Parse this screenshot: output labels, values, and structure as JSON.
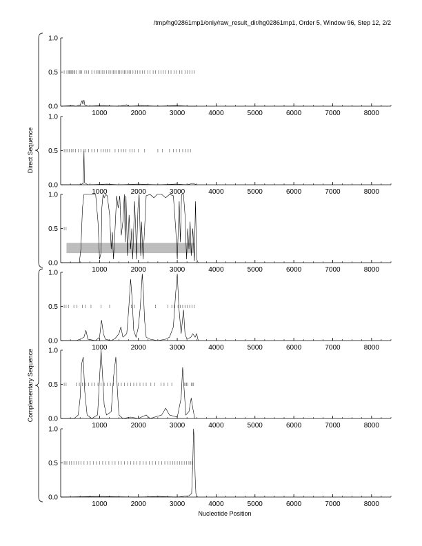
{
  "chart_data": {
    "type": "line",
    "title": "/tmp/hg02861mp1/only/raw_result_dir/hg02861mp1, Order 5, Window 96, Step 12, 2/2",
    "xlabel": "Nucleotide Position",
    "x_ticks": [
      1000,
      2000,
      3000,
      4000,
      5000,
      6000,
      7000,
      8000
    ],
    "xlim": [
      0,
      8500
    ],
    "y_ticks": [
      "0.0",
      "0.5",
      "1.0"
    ],
    "ylim": [
      0,
      1
    ],
    "group_labels": [
      "Direct Sequence",
      "Complementary Sequence"
    ],
    "panels": [
      {
        "id": "direct-frame-1",
        "orf_ticks": [
          90,
          160,
          210,
          230,
          250,
          280,
          310,
          340,
          360,
          400,
          480,
          510,
          540,
          620,
          670,
          720,
          800,
          860,
          920,
          960,
          1000,
          1040,
          1080,
          1120,
          1180,
          1240,
          1280,
          1320,
          1360,
          1400,
          1440,
          1480,
          1520,
          1560,
          1600,
          1640,
          1680,
          1720,
          1760,
          1800,
          1860,
          1920,
          1980,
          2040,
          2100,
          2160,
          2240,
          2300,
          2380,
          2440,
          2520,
          2580,
          2640,
          2700,
          2780,
          2840,
          2920,
          2980,
          3060,
          3120,
          3200,
          3260,
          3320,
          3380,
          3440
        ],
        "series": [
          [
            0,
            0
          ],
          [
            300,
            0.01
          ],
          [
            400,
            0
          ],
          [
            500,
            0.02
          ],
          [
            550,
            0.08
          ],
          [
            570,
            0.03
          ],
          [
            600,
            0.09
          ],
          [
            620,
            0.02
          ],
          [
            700,
            0
          ],
          [
            1000,
            0.01
          ],
          [
            1500,
            0
          ],
          [
            1700,
            0.02
          ],
          [
            1750,
            0
          ],
          [
            2100,
            0.01
          ],
          [
            2500,
            0
          ],
          [
            3000,
            0.01
          ],
          [
            3300,
            0
          ],
          [
            3500,
            0
          ]
        ]
      },
      {
        "id": "direct-frame-2",
        "orf_ticks": [
          90,
          140,
          180,
          220,
          280,
          320,
          380,
          450,
          520,
          600,
          650,
          720,
          800,
          880,
          950,
          1040,
          1100,
          1160,
          1200,
          1260,
          1400,
          1480,
          1560,
          1620,
          1680,
          1780,
          1840,
          1900,
          2000,
          2160,
          2500,
          2620,
          2800,
          2900,
          2980,
          3060,
          3140,
          3220,
          3280,
          3340
        ],
        "series": [
          [
            0,
            0
          ],
          [
            500,
            0
          ],
          [
            580,
            0.02
          ],
          [
            600,
            0.5
          ],
          [
            612,
            0.03
          ],
          [
            700,
            0
          ],
          [
            1200,
            0.01
          ],
          [
            1500,
            0
          ],
          [
            2000,
            0.01
          ],
          [
            2500,
            0
          ],
          [
            3000,
            0.01
          ],
          [
            3250,
            0
          ],
          [
            3400,
            0.02
          ],
          [
            3500,
            0
          ]
        ]
      },
      {
        "id": "direct-frame-3",
        "orf_ticks": [
          90,
          140
        ],
        "gene_band": [
          150,
          3450
        ],
        "series": [
          [
            0,
            0
          ],
          [
            480,
            0
          ],
          [
            520,
            0.2
          ],
          [
            560,
            0.8
          ],
          [
            600,
            1.0
          ],
          [
            900,
            1.0
          ],
          [
            960,
            0.6
          ],
          [
            1000,
            0.05
          ],
          [
            1040,
            0.15
          ],
          [
            1060,
            0.8
          ],
          [
            1090,
            1.0
          ],
          [
            1120,
            0.95
          ],
          [
            1160,
            1.0
          ],
          [
            1200,
            0.98
          ],
          [
            1260,
            0.7
          ],
          [
            1300,
            0.2
          ],
          [
            1330,
            0.45
          ],
          [
            1360,
            0.05
          ],
          [
            1400,
            0.5
          ],
          [
            1440,
            0.98
          ],
          [
            1480,
            0.8
          ],
          [
            1520,
            0.98
          ],
          [
            1560,
            0.4
          ],
          [
            1600,
            0.6
          ],
          [
            1640,
            1.0
          ],
          [
            1660,
            0.3
          ],
          [
            1680,
            0.98
          ],
          [
            1720,
            0.1
          ],
          [
            1760,
            0.7
          ],
          [
            1800,
            0.2
          ],
          [
            1830,
            0.5
          ],
          [
            1850,
            0.05
          ],
          [
            1870,
            0.3
          ],
          [
            1900,
            0.9
          ],
          [
            1930,
            0.5
          ],
          [
            1950,
            0.05
          ],
          [
            1990,
            0.8
          ],
          [
            2020,
            1.0
          ],
          [
            2060,
            0.1
          ],
          [
            2080,
            0.6
          ],
          [
            2120,
            0.05
          ],
          [
            2150,
            0.4
          ],
          [
            2200,
            0.98
          ],
          [
            2300,
            1.0
          ],
          [
            2400,
            0.95
          ],
          [
            2480,
            1.0
          ],
          [
            2600,
            1.0
          ],
          [
            2700,
            0.95
          ],
          [
            2800,
            1.0
          ],
          [
            2900,
            0.98
          ],
          [
            2960,
            0.5
          ],
          [
            3000,
            0.05
          ],
          [
            3050,
            0.9
          ],
          [
            3080,
            0.3
          ],
          [
            3110,
            1.0
          ],
          [
            3160,
            1.0
          ],
          [
            3200,
            0.7
          ],
          [
            3240,
            0.05
          ],
          [
            3270,
            0.5
          ],
          [
            3300,
            0.2
          ],
          [
            3330,
            0.6
          ],
          [
            3360,
            0.1
          ],
          [
            3400,
            0.5
          ],
          [
            3440,
            0.02
          ],
          [
            3470,
            0.9
          ],
          [
            3500,
            0.05
          ],
          [
            3540,
            0
          ]
        ]
      },
      {
        "id": "complementary-frame-1",
        "orf_ticks": [
          90,
          140,
          200,
          340,
          420,
          560,
          640,
          780,
          1040,
          1260,
          1820,
          1900,
          2440,
          2760,
          2860,
          2920,
          3020,
          3080,
          3140,
          3200,
          3260,
          3320,
          3380,
          3440
        ],
        "series": [
          [
            0,
            0
          ],
          [
            400,
            0
          ],
          [
            500,
            0.02
          ],
          [
            600,
            0.05
          ],
          [
            650,
            0.15
          ],
          [
            700,
            0.02
          ],
          [
            900,
            0
          ],
          [
            1000,
            0.05
          ],
          [
            1050,
            0.3
          ],
          [
            1100,
            0.1
          ],
          [
            1150,
            0.02
          ],
          [
            1300,
            0
          ],
          [
            1400,
            0.03
          ],
          [
            1500,
            0.1
          ],
          [
            1550,
            0.2
          ],
          [
            1600,
            0.05
          ],
          [
            1700,
            0.1
          ],
          [
            1750,
            0.45
          ],
          [
            1800,
            0.9
          ],
          [
            1840,
            0.6
          ],
          [
            1880,
            0.15
          ],
          [
            1940,
            0.05
          ],
          [
            2000,
            0.2
          ],
          [
            2050,
            0.5
          ],
          [
            2100,
            0.98
          ],
          [
            2130,
            0.7
          ],
          [
            2160,
            0.3
          ],
          [
            2200,
            0.05
          ],
          [
            2300,
            0.02
          ],
          [
            2500,
            0
          ],
          [
            2700,
            0.02
          ],
          [
            2800,
            0.05
          ],
          [
            2900,
            0.2
          ],
          [
            2960,
            0.7
          ],
          [
            3000,
            0.98
          ],
          [
            3040,
            0.5
          ],
          [
            3100,
            0.1
          ],
          [
            3160,
            0.45
          ],
          [
            3200,
            0.1
          ],
          [
            3250,
            0.02
          ],
          [
            3350,
            0.05
          ],
          [
            3400,
            0.1
          ],
          [
            3460,
            0.05
          ],
          [
            3500,
            0.1
          ],
          [
            3540,
            0
          ]
        ]
      },
      {
        "id": "complementary-frame-2",
        "orf_ticks": [
          90,
          140,
          400,
          480,
          560,
          640,
          720,
          800,
          880,
          960,
          1040,
          1120,
          1200,
          1280,
          1360,
          1480,
          1560,
          1640,
          1720,
          1800,
          1880,
          1960,
          2040,
          2120,
          2200,
          2320,
          2420,
          2580,
          2660,
          2760,
          2860,
          3180,
          3210,
          3240,
          3270,
          3360,
          3390,
          3420
        ],
        "series": [
          [
            0,
            0
          ],
          [
            350,
            0
          ],
          [
            450,
            0.05
          ],
          [
            500,
            0.3
          ],
          [
            540,
            0.8
          ],
          [
            580,
            0.9
          ],
          [
            620,
            0.4
          ],
          [
            680,
            0.05
          ],
          [
            800,
            0
          ],
          [
            950,
            0.05
          ],
          [
            1000,
            0.6
          ],
          [
            1040,
            1.0
          ],
          [
            1080,
            0.6
          ],
          [
            1120,
            0.2
          ],
          [
            1180,
            0.05
          ],
          [
            1300,
            0.1
          ],
          [
            1360,
            0.6
          ],
          [
            1420,
            0.9
          ],
          [
            1460,
            0.4
          ],
          [
            1500,
            0.05
          ],
          [
            1600,
            0
          ],
          [
            1800,
            0.02
          ],
          [
            2000,
            0
          ],
          [
            2200,
            0.05
          ],
          [
            2300,
            0
          ],
          [
            2600,
            0.05
          ],
          [
            2700,
            0.15
          ],
          [
            2800,
            0.05
          ],
          [
            3000,
            0.02
          ],
          [
            3100,
            0.3
          ],
          [
            3140,
            0.75
          ],
          [
            3180,
            0.4
          ],
          [
            3220,
            0.05
          ],
          [
            3300,
            0.1
          ],
          [
            3360,
            0.3
          ],
          [
            3400,
            0.15
          ],
          [
            3450,
            0
          ]
        ]
      },
      {
        "id": "complementary-frame-3",
        "orf_ticks": [
          90,
          120,
          160,
          220,
          280,
          340,
          400,
          460,
          520,
          600,
          680,
          760,
          840,
          920,
          1000,
          1080,
          1160,
          1240,
          1320,
          1400,
          1480,
          1560,
          1640,
          1720,
          1800,
          1880,
          1960,
          2040,
          2120,
          2200,
          2280,
          2360,
          2440,
          2520,
          2600,
          2680,
          2760,
          2820,
          2880,
          2940,
          3000,
          3060,
          3120,
          3180,
          3240,
          3300,
          3340,
          3380
        ],
        "series": [
          [
            0,
            0
          ],
          [
            1000,
            0.01
          ],
          [
            2000,
            0
          ],
          [
            2500,
            0.01
          ],
          [
            3000,
            0
          ],
          [
            3300,
            0.02
          ],
          [
            3370,
            0.05
          ],
          [
            3400,
            0.5
          ],
          [
            3420,
            1.0
          ],
          [
            3440,
            0.8
          ],
          [
            3460,
            0.3
          ],
          [
            3480,
            0.05
          ],
          [
            3520,
            0
          ]
        ]
      }
    ]
  }
}
